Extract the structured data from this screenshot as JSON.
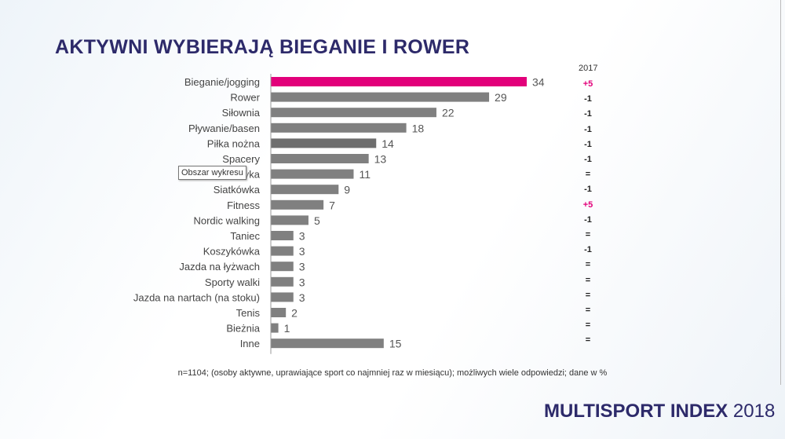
{
  "title": "AKTYWNI WYBIERAJĄ BIEGANIE I ROWER",
  "year_header": "2017",
  "note": "n=1104; (osoby aktywne, uprawiające sport co najmniej raz w miesiącu); możliwych wiele odpowiedzi; dane w %",
  "logo": {
    "main": "MULTISPORT INDEX",
    "year": "2018"
  },
  "tooltip": "Obszar wykresu",
  "colors": {
    "highlight": "#e2007a",
    "bar": "#808080",
    "title": "#2d2a6a"
  },
  "chart_data": {
    "type": "bar",
    "orientation": "horizontal",
    "title": "AKTYWNI WYBIERAJĄ BIEGANIE I ROWER",
    "categories": [
      "Bieganie/jogging",
      "Rower",
      "Siłownia",
      "Pływanie/basen",
      "Piłka nożna",
      "Spacery",
      "yka",
      "Siatkówka",
      "Fitness",
      "Nordic walking",
      "Taniec",
      "Koszykówka",
      "Jazda na łyżwach",
      "Sporty walki",
      "Jazda na nartach (na stoku)",
      "Tenis",
      "Bieżnia",
      "Inne"
    ],
    "values": [
      34,
      29,
      22,
      18,
      14,
      13,
      11,
      9,
      7,
      5,
      3,
      3,
      3,
      3,
      3,
      2,
      1,
      15
    ],
    "change_vs_2017": [
      "+5",
      "-1",
      "-1",
      "-1",
      "-1",
      "-1",
      "=",
      "-1",
      "+5",
      "-1",
      "=",
      "-1",
      "=",
      "=",
      "=",
      "=",
      "=",
      "="
    ],
    "highlighted": [
      0
    ],
    "unit": "%",
    "xlim": [
      0,
      34
    ]
  }
}
